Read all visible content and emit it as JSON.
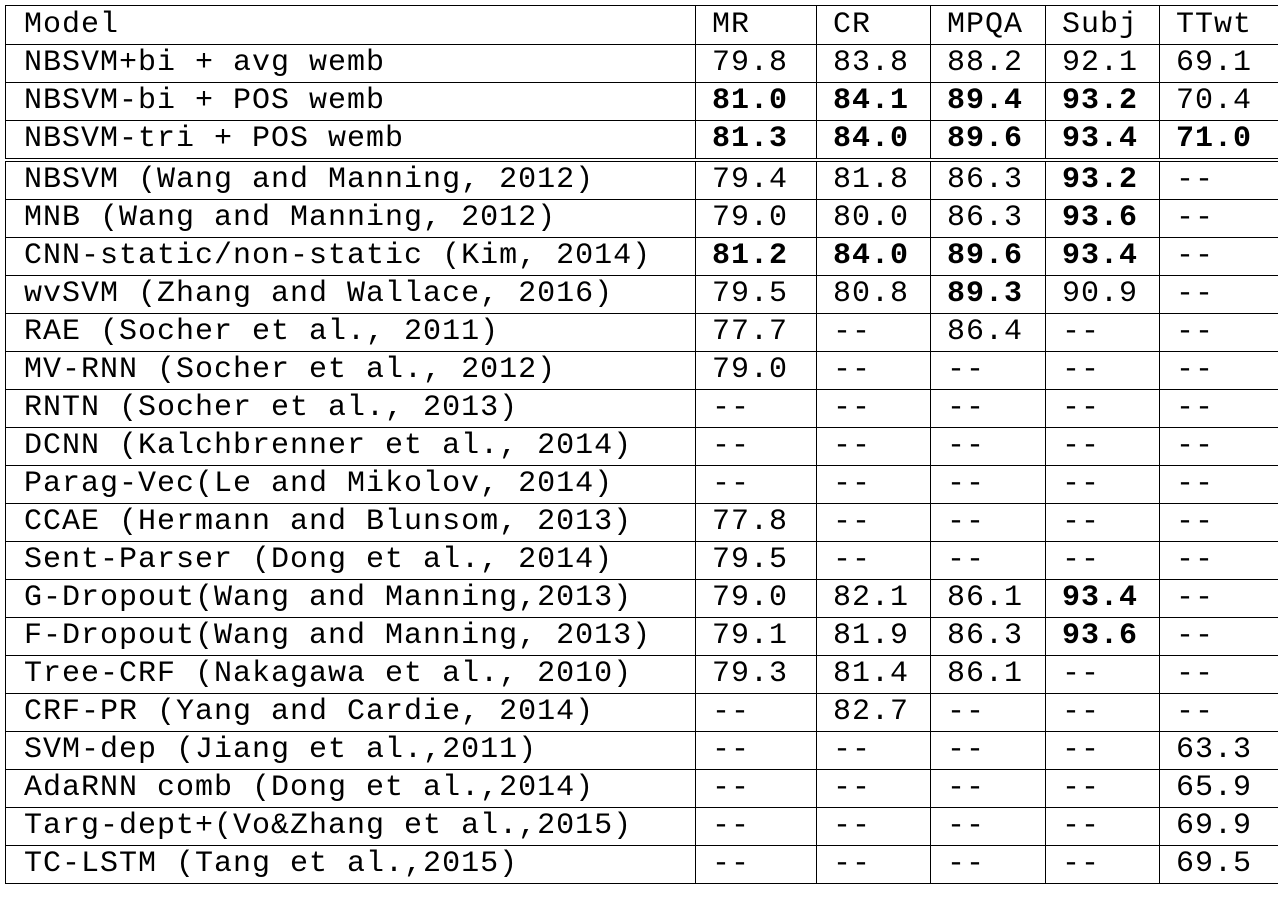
{
  "table": {
    "headers": [
      "Model",
      "MR",
      "CR",
      "MPQA",
      "Subj",
      "TTwt"
    ],
    "rows": [
      {
        "cells": [
          "NBSVM+bi + avg wemb",
          "79.8",
          "83.8",
          "88.2",
          "92.1",
          "69.1"
        ],
        "bold": [
          false,
          false,
          false,
          false,
          false,
          false
        ]
      },
      {
        "cells": [
          "NBSVM-bi + POS wemb",
          "81.0",
          "84.1",
          "89.4",
          "93.2",
          "70.4"
        ],
        "bold": [
          false,
          true,
          true,
          true,
          true,
          false
        ]
      },
      {
        "cells": [
          "NBSVM-tri + POS wemb",
          "81.3",
          "84.0",
          "89.6",
          "93.4",
          "71.0"
        ],
        "bold": [
          false,
          true,
          true,
          true,
          true,
          true
        ]
      },
      {
        "cells": [
          "NBSVM (Wang and Manning, 2012)",
          "79.4",
          "81.8",
          "86.3",
          "93.2",
          "--"
        ],
        "bold": [
          false,
          false,
          false,
          false,
          true,
          false
        ]
      },
      {
        "cells": [
          "MNB (Wang and Manning, 2012)",
          "79.0",
          "80.0",
          "86.3",
          "93.6",
          "--"
        ],
        "bold": [
          false,
          false,
          false,
          false,
          true,
          false
        ]
      },
      {
        "cells": [
          "CNN-static/non-static (Kim, 2014)",
          "81.2",
          "84.0",
          "89.6",
          "93.4",
          "--"
        ],
        "bold": [
          false,
          true,
          true,
          true,
          true,
          false
        ]
      },
      {
        "cells": [
          "wvSVM (Zhang and Wallace, 2016)",
          "79.5",
          "80.8",
          "89.3",
          "90.9",
          "--"
        ],
        "bold": [
          false,
          false,
          false,
          true,
          false,
          false
        ]
      },
      {
        "cells": [
          "RAE (Socher et al., 2011)",
          "77.7",
          "--",
          "86.4",
          "--",
          "--"
        ],
        "bold": [
          false,
          false,
          false,
          false,
          false,
          false
        ]
      },
      {
        "cells": [
          "MV-RNN (Socher et al., 2012)",
          "79.0",
          "--",
          "--",
          "--",
          "--"
        ],
        "bold": [
          false,
          false,
          false,
          false,
          false,
          false
        ]
      },
      {
        "cells": [
          "RNTN (Socher et al., 2013)",
          "--",
          "--",
          "--",
          "--",
          "--"
        ],
        "bold": [
          false,
          false,
          false,
          false,
          false,
          false
        ]
      },
      {
        "cells": [
          "DCNN (Kalchbrenner et al., 2014)",
          "--",
          "--",
          "--",
          "--",
          "--"
        ],
        "bold": [
          false,
          false,
          false,
          false,
          false,
          false
        ]
      },
      {
        "cells": [
          "Parag-Vec(Le and Mikolov, 2014)",
          "--",
          "--",
          "--",
          "--",
          "--"
        ],
        "bold": [
          false,
          false,
          false,
          false,
          false,
          false
        ]
      },
      {
        "cells": [
          "CCAE (Hermann and Blunsom, 2013)",
          "77.8",
          "--",
          "--",
          "--",
          "--"
        ],
        "bold": [
          false,
          false,
          false,
          false,
          false,
          false
        ]
      },
      {
        "cells": [
          "Sent-Parser (Dong et al., 2014)",
          "79.5",
          "--",
          "--",
          "--",
          "--"
        ],
        "bold": [
          false,
          false,
          false,
          false,
          false,
          false
        ]
      },
      {
        "cells": [
          "G-Dropout(Wang and Manning,2013)",
          "79.0",
          "82.1",
          "86.1",
          "93.4",
          "--"
        ],
        "bold": [
          false,
          false,
          false,
          false,
          true,
          false
        ]
      },
      {
        "cells": [
          "F-Dropout(Wang and Manning, 2013)",
          "79.1",
          "81.9",
          "86.3",
          "93.6",
          "--"
        ],
        "bold": [
          false,
          false,
          false,
          false,
          true,
          false
        ]
      },
      {
        "cells": [
          "Tree-CRF (Nakagawa et al., 2010)",
          "79.3",
          "81.4",
          "86.1",
          "--",
          "--"
        ],
        "bold": [
          false,
          false,
          false,
          false,
          false,
          false
        ]
      },
      {
        "cells": [
          "CRF-PR (Yang and Cardie, 2014)",
          "--",
          "82.7",
          "--",
          "--",
          "--"
        ],
        "bold": [
          false,
          false,
          false,
          false,
          false,
          false
        ]
      },
      {
        "cells": [
          "SVM-dep (Jiang et al.,2011)",
          "--",
          "--",
          "--",
          "--",
          "63.3"
        ],
        "bold": [
          false,
          false,
          false,
          false,
          false,
          false
        ]
      },
      {
        "cells": [
          "AdaRNN comb (Dong et al.,2014)",
          "--",
          "--",
          "--",
          "--",
          "65.9"
        ],
        "bold": [
          false,
          false,
          false,
          false,
          false,
          false
        ]
      },
      {
        "cells": [
          "Targ-dept+(Vo&Zhang et al.,2015)",
          "--",
          "--",
          "--",
          "--",
          "69.9"
        ],
        "bold": [
          false,
          false,
          false,
          false,
          false,
          false
        ]
      },
      {
        "cells": [
          "TC-LSTM (Tang et al.,2015)",
          "--",
          "--",
          "--",
          "--",
          "69.5"
        ],
        "bold": [
          false,
          false,
          false,
          false,
          false,
          false
        ]
      }
    ]
  }
}
